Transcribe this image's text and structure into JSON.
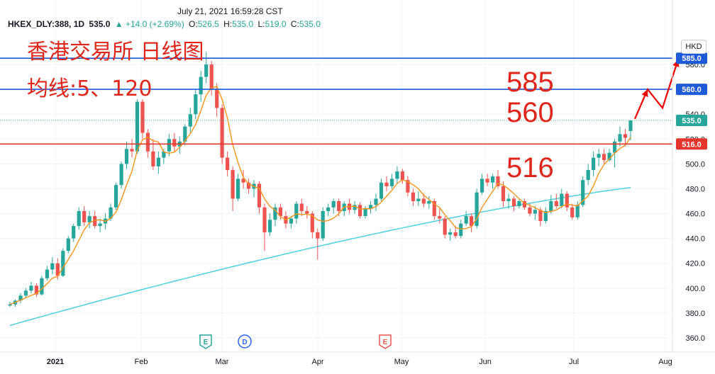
{
  "header": {
    "timestamp": "July 21, 2021 16:59:28 CST",
    "symbol": "HKEX_DLY:388, 1D",
    "last": "535.0",
    "change": "▲ +14.0 (+2.69%)",
    "ohlc": [
      {
        "k": "O:",
        "v": "526.5"
      },
      {
        "k": "H:",
        "v": "535.0"
      },
      {
        "k": "L:",
        "v": "519.0"
      },
      {
        "k": "C:",
        "v": "535.0"
      }
    ]
  },
  "annotations": {
    "title": "香港交易所 日线图",
    "ma_note": "均线:5、120",
    "level_585": "585",
    "level_560": "560",
    "level_516": "516"
  },
  "currency": "HKD",
  "colors": {
    "up": "#26a69a",
    "down": "#ef5350",
    "ma5": "#f7931a",
    "ma120": "#4dd0e1",
    "hline_blue": "#1e5bd8",
    "hline_red": "#e5352c",
    "arrow": "#f00000",
    "annotation": "#e0261b"
  },
  "chart_data": {
    "type": "candlestick",
    "title": "",
    "y_axis": {
      "ticks": [
        360,
        380,
        400,
        420,
        440,
        460,
        480,
        500,
        520,
        540,
        560,
        580
      ],
      "tick_labels": [
        "360.0",
        "380.0",
        "400.0",
        "420.0",
        "440.0",
        "460.0",
        "480.0",
        "500.0",
        "520.0",
        "540.0",
        "560.0",
        "580.0"
      ],
      "range": [
        349,
        600
      ]
    },
    "x_axis": {
      "labels": [
        "2021",
        "Feb",
        "Mar",
        "Apr",
        "May",
        "Jun",
        "Jul",
        "Aug"
      ]
    },
    "horizontal_lines": [
      {
        "value": 585.0,
        "label": "585.0",
        "color": "#1e5bd8"
      },
      {
        "value": 560.0,
        "label": "560.0",
        "color": "#1e5bd8"
      },
      {
        "value": 516.0,
        "label": "516.0",
        "color": "#e5352c"
      }
    ],
    "last_price_label": "535.0",
    "events": [
      {
        "type": "E",
        "color": "#26a69a",
        "date": "late Feb"
      },
      {
        "type": "D",
        "color": "#2962ff",
        "date": "early Mar"
      },
      {
        "type": "E",
        "color": "#ef5350",
        "date": "late Apr"
      }
    ],
    "candles": [
      {
        "o": 386,
        "h": 389,
        "l": 385,
        "c": 387
      },
      {
        "o": 387,
        "h": 391,
        "l": 385,
        "c": 390
      },
      {
        "o": 390,
        "h": 396,
        "l": 388,
        "c": 394
      },
      {
        "o": 394,
        "h": 400,
        "l": 392,
        "c": 398
      },
      {
        "o": 398,
        "h": 405,
        "l": 396,
        "c": 402
      },
      {
        "o": 402,
        "h": 404,
        "l": 393,
        "c": 395
      },
      {
        "o": 395,
        "h": 410,
        "l": 394,
        "c": 408
      },
      {
        "o": 408,
        "h": 418,
        "l": 406,
        "c": 415
      },
      {
        "o": 415,
        "h": 425,
        "l": 411,
        "c": 420
      },
      {
        "o": 420,
        "h": 424,
        "l": 407,
        "c": 410
      },
      {
        "o": 410,
        "h": 432,
        "l": 409,
        "c": 430
      },
      {
        "o": 430,
        "h": 442,
        "l": 428,
        "c": 440
      },
      {
        "o": 440,
        "h": 452,
        "l": 437,
        "c": 450
      },
      {
        "o": 450,
        "h": 465,
        "l": 447,
        "c": 462
      },
      {
        "o": 462,
        "h": 466,
        "l": 450,
        "c": 453
      },
      {
        "o": 453,
        "h": 462,
        "l": 448,
        "c": 458
      },
      {
        "o": 458,
        "h": 462,
        "l": 448,
        "c": 450
      },
      {
        "o": 450,
        "h": 456,
        "l": 445,
        "c": 452
      },
      {
        "o": 452,
        "h": 460,
        "l": 447,
        "c": 456
      },
      {
        "o": 456,
        "h": 468,
        "l": 454,
        "c": 465
      },
      {
        "o": 465,
        "h": 485,
        "l": 463,
        "c": 483
      },
      {
        "o": 483,
        "h": 502,
        "l": 480,
        "c": 500
      },
      {
        "o": 500,
        "h": 518,
        "l": 496,
        "c": 512
      },
      {
        "o": 512,
        "h": 520,
        "l": 505,
        "c": 510
      },
      {
        "o": 510,
        "h": 552,
        "l": 508,
        "c": 550
      },
      {
        "o": 550,
        "h": 552,
        "l": 520,
        "c": 525
      },
      {
        "o": 525,
        "h": 528,
        "l": 505,
        "c": 510
      },
      {
        "o": 510,
        "h": 520,
        "l": 495,
        "c": 498
      },
      {
        "o": 498,
        "h": 510,
        "l": 492,
        "c": 505
      },
      {
        "o": 505,
        "h": 512,
        "l": 500,
        "c": 510
      },
      {
        "o": 510,
        "h": 524,
        "l": 506,
        "c": 520
      },
      {
        "o": 520,
        "h": 525,
        "l": 510,
        "c": 514
      },
      {
        "o": 514,
        "h": 522,
        "l": 508,
        "c": 518
      },
      {
        "o": 518,
        "h": 532,
        "l": 515,
        "c": 530
      },
      {
        "o": 530,
        "h": 545,
        "l": 525,
        "c": 540
      },
      {
        "o": 540,
        "h": 560,
        "l": 536,
        "c": 556
      },
      {
        "o": 556,
        "h": 575,
        "l": 550,
        "c": 570
      },
      {
        "o": 570,
        "h": 590,
        "l": 565,
        "c": 580
      },
      {
        "o": 580,
        "h": 583,
        "l": 555,
        "c": 560
      },
      {
        "o": 560,
        "h": 565,
        "l": 538,
        "c": 545
      },
      {
        "o": 545,
        "h": 548,
        "l": 500,
        "c": 505
      },
      {
        "o": 505,
        "h": 510,
        "l": 490,
        "c": 495
      },
      {
        "o": 495,
        "h": 498,
        "l": 462,
        "c": 472
      },
      {
        "o": 472,
        "h": 492,
        "l": 470,
        "c": 488
      },
      {
        "o": 488,
        "h": 495,
        "l": 480,
        "c": 485
      },
      {
        "o": 485,
        "h": 488,
        "l": 476,
        "c": 480
      },
      {
        "o": 480,
        "h": 487,
        "l": 473,
        "c": 484
      },
      {
        "o": 484,
        "h": 486,
        "l": 460,
        "c": 465
      },
      {
        "o": 465,
        "h": 468,
        "l": 430,
        "c": 445
      },
      {
        "o": 445,
        "h": 460,
        "l": 442,
        "c": 455
      },
      {
        "o": 455,
        "h": 468,
        "l": 450,
        "c": 465
      },
      {
        "o": 465,
        "h": 468,
        "l": 455,
        "c": 458
      },
      {
        "o": 458,
        "h": 462,
        "l": 448,
        "c": 452
      },
      {
        "o": 452,
        "h": 458,
        "l": 448,
        "c": 456
      },
      {
        "o": 456,
        "h": 470,
        "l": 452,
        "c": 468
      },
      {
        "o": 468,
        "h": 472,
        "l": 458,
        "c": 462
      },
      {
        "o": 462,
        "h": 466,
        "l": 456,
        "c": 460
      },
      {
        "o": 460,
        "h": 462,
        "l": 440,
        "c": 445
      },
      {
        "o": 445,
        "h": 448,
        "l": 423,
        "c": 440
      },
      {
        "o": 440,
        "h": 465,
        "l": 438,
        "c": 462
      },
      {
        "o": 462,
        "h": 468,
        "l": 458,
        "c": 465
      },
      {
        "o": 465,
        "h": 472,
        "l": 460,
        "c": 470
      },
      {
        "o": 470,
        "h": 472,
        "l": 458,
        "c": 462
      },
      {
        "o": 462,
        "h": 470,
        "l": 458,
        "c": 468
      },
      {
        "o": 468,
        "h": 472,
        "l": 460,
        "c": 463
      },
      {
        "o": 463,
        "h": 470,
        "l": 460,
        "c": 467
      },
      {
        "o": 467,
        "h": 469,
        "l": 456,
        "c": 458
      },
      {
        "o": 458,
        "h": 466,
        "l": 456,
        "c": 464
      },
      {
        "o": 464,
        "h": 470,
        "l": 460,
        "c": 467
      },
      {
        "o": 467,
        "h": 476,
        "l": 462,
        "c": 472
      },
      {
        "o": 472,
        "h": 488,
        "l": 470,
        "c": 485
      },
      {
        "o": 485,
        "h": 490,
        "l": 478,
        "c": 482
      },
      {
        "o": 482,
        "h": 492,
        "l": 480,
        "c": 488
      },
      {
        "o": 488,
        "h": 498,
        "l": 484,
        "c": 494
      },
      {
        "o": 494,
        "h": 496,
        "l": 484,
        "c": 487
      },
      {
        "o": 487,
        "h": 490,
        "l": 474,
        "c": 477
      },
      {
        "o": 477,
        "h": 480,
        "l": 466,
        "c": 470
      },
      {
        "o": 470,
        "h": 478,
        "l": 466,
        "c": 472
      },
      {
        "o": 472,
        "h": 476,
        "l": 465,
        "c": 468
      },
      {
        "o": 468,
        "h": 474,
        "l": 464,
        "c": 470
      },
      {
        "o": 470,
        "h": 472,
        "l": 455,
        "c": 458
      },
      {
        "o": 458,
        "h": 465,
        "l": 452,
        "c": 456
      },
      {
        "o": 456,
        "h": 458,
        "l": 440,
        "c": 443
      },
      {
        "o": 443,
        "h": 448,
        "l": 438,
        "c": 445
      },
      {
        "o": 445,
        "h": 450,
        "l": 440,
        "c": 442
      },
      {
        "o": 442,
        "h": 455,
        "l": 440,
        "c": 452
      },
      {
        "o": 452,
        "h": 462,
        "l": 450,
        "c": 458
      },
      {
        "o": 458,
        "h": 460,
        "l": 445,
        "c": 450
      },
      {
        "o": 450,
        "h": 480,
        "l": 448,
        "c": 477
      },
      {
        "o": 477,
        "h": 492,
        "l": 475,
        "c": 488
      },
      {
        "o": 488,
        "h": 492,
        "l": 482,
        "c": 485
      },
      {
        "o": 485,
        "h": 492,
        "l": 480,
        "c": 490
      },
      {
        "o": 490,
        "h": 495,
        "l": 480,
        "c": 482
      },
      {
        "o": 482,
        "h": 486,
        "l": 465,
        "c": 470
      },
      {
        "o": 470,
        "h": 476,
        "l": 464,
        "c": 472
      },
      {
        "o": 472,
        "h": 474,
        "l": 462,
        "c": 466
      },
      {
        "o": 466,
        "h": 472,
        "l": 464,
        "c": 470
      },
      {
        "o": 470,
        "h": 472,
        "l": 463,
        "c": 465
      },
      {
        "o": 465,
        "h": 468,
        "l": 458,
        "c": 460
      },
      {
        "o": 460,
        "h": 466,
        "l": 455,
        "c": 463
      },
      {
        "o": 463,
        "h": 465,
        "l": 450,
        "c": 454
      },
      {
        "o": 454,
        "h": 465,
        "l": 452,
        "c": 462
      },
      {
        "o": 462,
        "h": 475,
        "l": 460,
        "c": 470
      },
      {
        "o": 470,
        "h": 476,
        "l": 464,
        "c": 466
      },
      {
        "o": 466,
        "h": 480,
        "l": 464,
        "c": 476
      },
      {
        "o": 476,
        "h": 478,
        "l": 462,
        "c": 465
      },
      {
        "o": 465,
        "h": 468,
        "l": 455,
        "c": 457
      },
      {
        "o": 457,
        "h": 470,
        "l": 455,
        "c": 467
      },
      {
        "o": 467,
        "h": 490,
        "l": 465,
        "c": 487
      },
      {
        "o": 487,
        "h": 500,
        "l": 483,
        "c": 495
      },
      {
        "o": 495,
        "h": 510,
        "l": 490,
        "c": 505
      },
      {
        "o": 505,
        "h": 512,
        "l": 498,
        "c": 508
      },
      {
        "o": 508,
        "h": 512,
        "l": 500,
        "c": 503
      },
      {
        "o": 503,
        "h": 512,
        "l": 502,
        "c": 509
      },
      {
        "o": 509,
        "h": 520,
        "l": 497,
        "c": 518
      },
      {
        "o": 518,
        "h": 530,
        "l": 514,
        "c": 524
      },
      {
        "o": 524,
        "h": 528,
        "l": 514,
        "c": 521
      },
      {
        "o": 526.5,
        "h": 535,
        "l": 519,
        "c": 535
      }
    ],
    "ma_series": [
      {
        "name": "均线 5",
        "color": "#f7931a"
      },
      {
        "name": "均线 120",
        "color": "#4dd0e1",
        "start": 370,
        "end": 481
      }
    ]
  }
}
